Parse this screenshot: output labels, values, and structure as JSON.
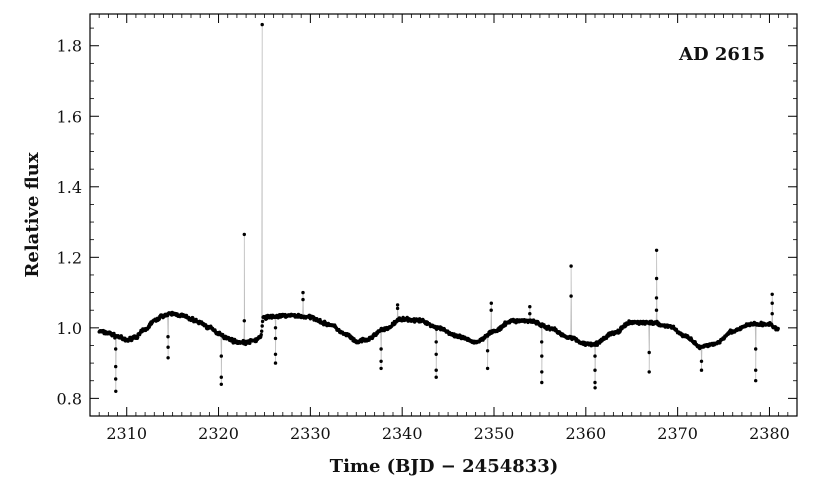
{
  "chart_data": {
    "type": "scatter",
    "title": "",
    "annotation": "AD 2615",
    "xlabel": "Time (BJD − 2454833)",
    "ylabel": "Relative flux",
    "xlim": [
      2306,
      2383
    ],
    "ylim": [
      0.75,
      1.89
    ],
    "xticks": [
      2310,
      2320,
      2330,
      2340,
      2350,
      2360,
      2370,
      2380
    ],
    "yticks": [
      0.8,
      1.0,
      1.2,
      1.4,
      1.6,
      1.8
    ],
    "xtick_labels": [
      "2310",
      "2320",
      "2330",
      "2340",
      "2350",
      "2360",
      "2370",
      "2380"
    ],
    "ytick_labels": [
      "0.8",
      "1.0",
      "1.2",
      "1.4",
      "1.6",
      "1.8"
    ],
    "grid": false,
    "markers": "black dots connected by thin grey line",
    "x_range": [
      2307,
      2381
    ],
    "baseline": {
      "x": [
        2307,
        2308,
        2309,
        2310,
        2311,
        2312,
        2313,
        2314,
        2315,
        2316,
        2317,
        2318,
        2319,
        2320,
        2321,
        2322,
        2323,
        2324,
        2324.6,
        2324.9,
        2326,
        2328,
        2330,
        2332,
        2334,
        2335,
        2336,
        2338,
        2340,
        2342,
        2344,
        2346,
        2348,
        2350,
        2352,
        2354,
        2356,
        2358,
        2360,
        2361,
        2363,
        2365,
        2367,
        2369,
        2371,
        2372.5,
        2374,
        2376,
        2378,
        2380,
        2381
      ],
      "y": [
        0.99,
        0.985,
        0.975,
        0.965,
        0.975,
        0.995,
        1.02,
        1.035,
        1.04,
        1.035,
        1.025,
        1.015,
        1.0,
        0.985,
        0.97,
        0.96,
        0.958,
        0.965,
        0.975,
        1.03,
        1.032,
        1.035,
        1.03,
        1.01,
        0.98,
        0.96,
        0.965,
        0.995,
        1.025,
        1.02,
        1.0,
        0.975,
        0.96,
        0.99,
        1.02,
        1.02,
        1.0,
        0.975,
        0.955,
        0.955,
        0.985,
        1.015,
        1.015,
        1.005,
        0.975,
        0.945,
        0.955,
        0.99,
        1.01,
        1.01,
        0.995
      ]
    },
    "dips": [
      {
        "x": 2308.8,
        "ys": [
          0.94,
          0.89,
          0.855,
          0.82
        ]
      },
      {
        "x": 2314.5,
        "ys": [
          0.975,
          0.945,
          0.915
        ]
      },
      {
        "x": 2320.3,
        "ys": [
          0.92,
          0.86,
          0.84
        ]
      },
      {
        "x": 2326.2,
        "ys": [
          1.0,
          0.97,
          0.925,
          0.9
        ]
      },
      {
        "x": 2337.7,
        "ys": [
          0.94,
          0.905,
          0.885
        ]
      },
      {
        "x": 2343.7,
        "ys": [
          0.96,
          0.925,
          0.88,
          0.86
        ]
      },
      {
        "x": 2349.3,
        "ys": [
          0.935,
          0.885
        ]
      },
      {
        "x": 2355.2,
        "ys": [
          0.96,
          0.92,
          0.875,
          0.845
        ]
      },
      {
        "x": 2361.0,
        "ys": [
          0.92,
          0.88,
          0.845,
          0.83
        ]
      },
      {
        "x": 2366.9,
        "ys": [
          0.93,
          0.875
        ]
      },
      {
        "x": 2372.6,
        "ys": [
          0.905,
          0.88
        ]
      },
      {
        "x": 2378.5,
        "ys": [
          0.94,
          0.88,
          0.85
        ]
      }
    ],
    "spikes": [
      {
        "x": 2322.8,
        "ys": [
          1.02,
          1.265
        ]
      },
      {
        "x": 2324.75,
        "ys": [
          1.86
        ]
      },
      {
        "x": 2329.2,
        "ys": [
          1.08,
          1.1
        ]
      },
      {
        "x": 2339.5,
        "ys": [
          1.055,
          1.065
        ]
      },
      {
        "x": 2349.7,
        "ys": [
          1.05,
          1.07
        ]
      },
      {
        "x": 2353.9,
        "ys": [
          1.04,
          1.06
        ]
      },
      {
        "x": 2358.4,
        "ys": [
          1.09,
          1.175
        ]
      },
      {
        "x": 2367.7,
        "ys": [
          1.05,
          1.085,
          1.14,
          1.22
        ]
      },
      {
        "x": 2380.3,
        "ys": [
          1.04,
          1.07,
          1.095
        ]
      }
    ]
  }
}
